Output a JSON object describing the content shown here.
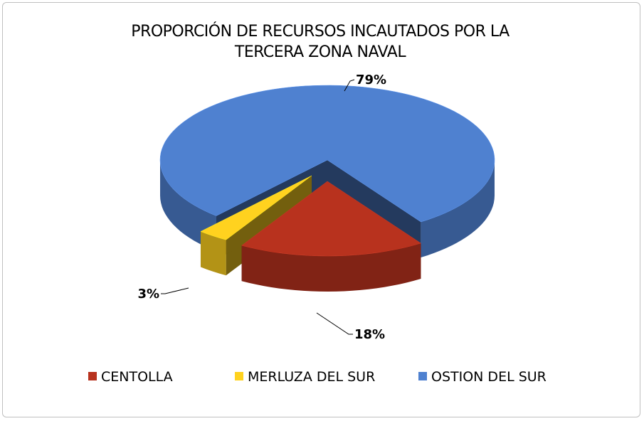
{
  "chart_data": {
    "type": "pie",
    "title": "PROPORCIÓN DE  RECURSOS INCAUTADOS POR LA TERCERA ZONA NAVAL",
    "categories": [
      "CENTOLLA",
      "MERLUZA DEL SUR",
      "OSTION DEL SUR"
    ],
    "values": [
      18,
      3,
      79
    ],
    "value_labels": [
      "18%",
      "3%",
      "79%"
    ],
    "colors": [
      "#b8321e",
      "#ffd21f",
      "#4f81d0"
    ],
    "legend": "bottom"
  }
}
